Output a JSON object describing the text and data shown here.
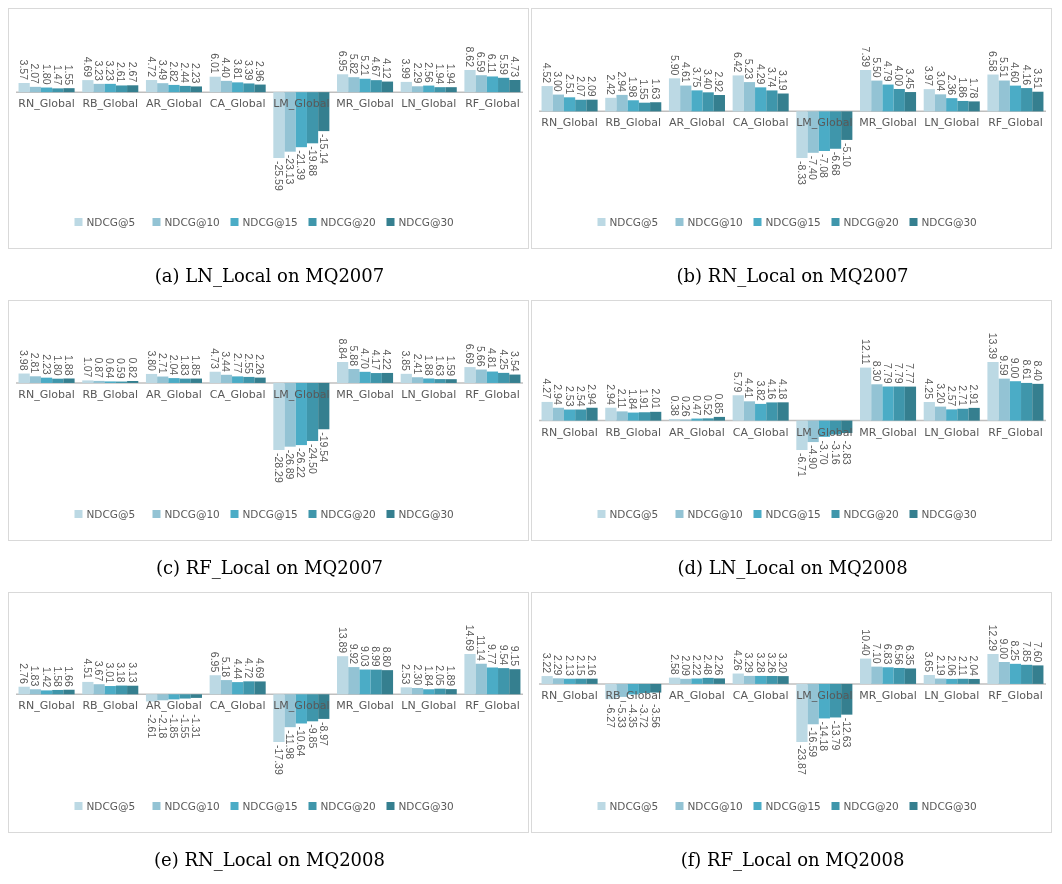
{
  "chart_data": [
    {
      "type": "bar",
      "title": "(a) LN_Local on MQ2007",
      "categories": [
        "RN_Global",
        "RB_Global",
        "AR_Global",
        "CA_Global",
        "LM_Global",
        "MR_Global",
        "LN_Global",
        "RF_Global"
      ],
      "legend": "bottom",
      "series": [
        {
          "name": "NDCG@5",
          "color": "#bcd9e4",
          "values": [
            3.57,
            4.69,
            4.72,
            6.01,
            -25.59,
            6.95,
            3.99,
            8.62
          ],
          "value_labels": [
            "3.57",
            "4.69",
            "4.72",
            "6.01",
            "-25.59",
            "6.95",
            "3.99",
            "8.62"
          ]
        },
        {
          "name": "NDCG@10",
          "color": "#93c3d4",
          "values": [
            2.07,
            3.23,
            3.49,
            4.4,
            -23.13,
            5.82,
            2.29,
            6.59
          ],
          "value_labels": [
            "2.07",
            "3.23",
            "3.49",
            "4.40",
            "-23.13",
            "5.82",
            "2.29",
            "6.59"
          ]
        },
        {
          "name": "NDCG@15",
          "color": "#4bacc6",
          "values": [
            1.8,
            3.23,
            2.82,
            3.81,
            -21.39,
            5.21,
            2.56,
            6.11
          ],
          "value_labels": [
            "1.80",
            "3.23",
            "2.82",
            "3.81",
            "-21.39",
            "5.21",
            "2.56",
            "6.11"
          ]
        },
        {
          "name": "NDCG@20",
          "color": "#3f96ab",
          "values": [
            1.47,
            2.61,
            2.44,
            3.39,
            -19.88,
            4.67,
            1.94,
            5.59
          ],
          "value_labels": [
            "1.47",
            "2.61",
            "2.44",
            "3.39",
            "-19.88",
            "4.67",
            "1.94",
            "5.59"
          ]
        },
        {
          "name": "NDCG@30",
          "color": "#357f8f",
          "values": [
            1.55,
            2.67,
            2.23,
            2.96,
            -15.14,
            4.12,
            1.94,
            4.73
          ],
          "value_labels": [
            "1.55",
            "2.67",
            "2.23",
            "2.96",
            "-15.14",
            "4.12",
            "1.94",
            "4.73"
          ]
        }
      ]
    },
    {
      "type": "bar",
      "title": "(b) RN_Local on MQ2007",
      "categories": [
        "RN_Global",
        "RB_Global",
        "AR_Global",
        "CA_Global",
        "LM_Global",
        "MR_Global",
        "LN_Global",
        "RF_Global"
      ],
      "legend": "bottom",
      "series": [
        {
          "name": "NDCG@5",
          "color": "#bcd9e4",
          "values": [
            4.52,
            2.42,
            5.9,
            6.42,
            -8.33,
            7.39,
            3.97,
            6.58
          ],
          "value_labels": [
            "4.52",
            "2.42",
            "5.90",
            "6.42",
            "-8.33",
            "7.39",
            "3.97",
            "6.58"
          ]
        },
        {
          "name": "NDCG@10",
          "color": "#93c3d4",
          "values": [
            3.0,
            2.94,
            4.61,
            5.23,
            -7.4,
            5.5,
            3.04,
            5.51
          ],
          "value_labels": [
            "3.00",
            "2.94",
            "4.61",
            "5.23",
            "-7.40",
            "5.50",
            "3.04",
            "5.51"
          ]
        },
        {
          "name": "NDCG@15",
          "color": "#4bacc6",
          "values": [
            2.51,
            1.98,
            3.75,
            4.29,
            -7.08,
            4.79,
            2.36,
            4.6
          ],
          "value_labels": [
            "2.51",
            "1.98",
            "3.75",
            "4.29",
            "-7.08",
            "4.79",
            "2.36",
            "4.60"
          ]
        },
        {
          "name": "NDCG@20",
          "color": "#3f96ab",
          "values": [
            2.07,
            1.55,
            3.4,
            3.74,
            -6.68,
            4.0,
            1.86,
            4.16
          ],
          "value_labels": [
            "2.07",
            "1.55",
            "3.40",
            "3.74",
            "-6.68",
            "4.00",
            "1.86",
            "4.16"
          ]
        },
        {
          "name": "NDCG@30",
          "color": "#357f8f",
          "values": [
            2.09,
            1.63,
            2.92,
            3.19,
            -5.1,
            3.45,
            1.78,
            3.51
          ],
          "value_labels": [
            "2.09",
            "1.63",
            "2.92",
            "3.19",
            "-5.10",
            "3.45",
            "1.78",
            "3.51"
          ]
        }
      ]
    },
    {
      "type": "bar",
      "title": "(c) RF_Local on MQ2007",
      "categories": [
        "RN_Global",
        "RB_Global",
        "AR_Global",
        "CA_Global",
        "LM_Global",
        "MR_Global",
        "LN_Global",
        "RF_Global"
      ],
      "legend": "bottom",
      "series": [
        {
          "name": "NDCG@5",
          "color": "#bcd9e4",
          "values": [
            3.98,
            1.07,
            3.8,
            4.73,
            -28.29,
            8.84,
            3.85,
            6.69
          ],
          "value_labels": [
            "3.98",
            "1.07",
            "3.80",
            "4.73",
            "-28.29",
            "8.84",
            "3.85",
            "6.69"
          ]
        },
        {
          "name": "NDCG@10",
          "color": "#93c3d4",
          "values": [
            2.81,
            0.87,
            2.71,
            3.44,
            -26.89,
            5.88,
            2.41,
            5.66
          ],
          "value_labels": [
            "2.81",
            "0.87",
            "2.71",
            "3.44",
            "-26.89",
            "5.88",
            "2.41",
            "5.66"
          ]
        },
        {
          "name": "NDCG@15",
          "color": "#4bacc6",
          "values": [
            2.23,
            0.64,
            2.04,
            2.77,
            -26.22,
            4.7,
            1.88,
            4.81
          ],
          "value_labels": [
            "2.23",
            "0.64",
            "2.04",
            "2.77",
            "-26.22",
            "4.70",
            "1.88",
            "4.81"
          ]
        },
        {
          "name": "NDCG@20",
          "color": "#3f96ab",
          "values": [
            1.8,
            0.59,
            1.83,
            2.55,
            -24.5,
            4.17,
            1.63,
            4.25
          ],
          "value_labels": [
            "1.80",
            "0.59",
            "1.83",
            "2.55",
            "-24.50",
            "4.17",
            "1.63",
            "4.25"
          ]
        },
        {
          "name": "NDCG@30",
          "color": "#357f8f",
          "values": [
            1.88,
            0.82,
            1.85,
            2.26,
            -19.54,
            4.22,
            1.59,
            3.54
          ],
          "value_labels": [
            "1.88",
            "0.82",
            "1.85",
            "2.26",
            "-19.54",
            "4.22",
            "1.59",
            "3.54"
          ]
        }
      ]
    },
    {
      "type": "bar",
      "title": "(d) LN_Local on MQ2008",
      "categories": [
        "RN_Global",
        "RB_Global",
        "AR_Global",
        "CA_Global",
        "LM_Global",
        "MR_Global",
        "LN_Global",
        "RF_Global"
      ],
      "legend": "bottom",
      "series": [
        {
          "name": "NDCG@5",
          "color": "#bcd9e4",
          "values": [
            4.27,
            2.94,
            0.38,
            5.79,
            -6.71,
            12.11,
            4.25,
            13.39
          ],
          "value_labels": [
            "4.27",
            "2.94",
            "0.38",
            "5.79",
            "-6.71",
            "12.11",
            "4.25",
            "13.39"
          ]
        },
        {
          "name": "NDCG@10",
          "color": "#93c3d4",
          "values": [
            2.94,
            2.11,
            0.26,
            4.41,
            -4.9,
            8.3,
            3.2,
            9.59
          ],
          "value_labels": [
            "2.94",
            "2.11",
            "0.26",
            "4.41",
            "-4.90",
            "8.30",
            "3.20",
            "9.59"
          ]
        },
        {
          "name": "NDCG@15",
          "color": "#4bacc6",
          "values": [
            2.53,
            1.84,
            0.47,
            3.82,
            -3.7,
            7.79,
            2.57,
            9.0
          ],
          "value_labels": [
            "2.53",
            "1.84",
            "0.47",
            "3.82",
            "-3.70",
            "7.79",
            "2.57",
            "9.00"
          ]
        },
        {
          "name": "NDCG@20",
          "color": "#3f96ab",
          "values": [
            2.54,
            1.91,
            0.52,
            4.16,
            -3.16,
            7.79,
            2.71,
            8.61
          ],
          "value_labels": [
            "2.54",
            "1.91",
            "0.52",
            "4.16",
            "-3.16",
            "7.79",
            "2.71",
            "8.61"
          ]
        },
        {
          "name": "NDCG@30",
          "color": "#357f8f",
          "values": [
            2.94,
            2.01,
            0.85,
            4.18,
            -2.83,
            7.77,
            2.91,
            8.4
          ],
          "value_labels": [
            "2.94",
            "2.01",
            "0.85",
            "4.18",
            "-2.83",
            "7.77",
            "2.91",
            "8.40"
          ]
        }
      ]
    },
    {
      "type": "bar",
      "title": "(e) RN_Local on MQ2008",
      "categories": [
        "RN_Global",
        "RB_Global",
        "AR_Global",
        "CA_Global",
        "LM_Global",
        "MR_Global",
        "LN_Global",
        "RF_Global"
      ],
      "legend": "bottom",
      "series": [
        {
          "name": "NDCG@5",
          "color": "#bcd9e4",
          "values": [
            2.76,
            4.51,
            -2.61,
            6.95,
            -17.39,
            13.89,
            2.53,
            14.69
          ],
          "value_labels": [
            "2.76",
            "4.51",
            "-2.61",
            "6.95",
            "-17.39",
            "13.89",
            "2.53",
            "14.69"
          ]
        },
        {
          "name": "NDCG@10",
          "color": "#93c3d4",
          "values": [
            1.83,
            3.67,
            -2.18,
            5.18,
            -11.98,
            9.92,
            2.3,
            11.14
          ],
          "value_labels": [
            "1.83",
            "3.67",
            "-2.18",
            "5.18",
            "-11.98",
            "9.92",
            "2.30",
            "11.14"
          ]
        },
        {
          "name": "NDCG@15",
          "color": "#4bacc6",
          "values": [
            1.42,
            3.01,
            -1.85,
            4.44,
            -10.64,
            9.03,
            1.84,
            9.77
          ],
          "value_labels": [
            "1.42",
            "3.01",
            "-1.85",
            "4.44",
            "-10.64",
            "9.03",
            "1.84",
            "9.77"
          ]
        },
        {
          "name": "NDCG@20",
          "color": "#3f96ab",
          "values": [
            1.58,
            3.18,
            -1.55,
            4.72,
            -9.85,
            8.99,
            2.05,
            9.54
          ],
          "value_labels": [
            "1.58",
            "3.18",
            "-1.55",
            "4.72",
            "-9.85",
            "8.99",
            "2.05",
            "9.54"
          ]
        },
        {
          "name": "NDCG@30",
          "color": "#357f8f",
          "values": [
            1.66,
            3.13,
            -1.31,
            4.69,
            -8.97,
            8.8,
            1.89,
            9.15
          ],
          "value_labels": [
            "1.66",
            "3.13",
            "-1.31",
            "4.69",
            "-8.97",
            "8.80",
            "1.89",
            "9.15"
          ]
        }
      ]
    },
    {
      "type": "bar",
      "title": "(f) RF_Local on MQ2008",
      "categories": [
        "RN_Global",
        "RB_Global",
        "AR_Global",
        "CA_Global",
        "LM_Global",
        "MR_Global",
        "LN_Global",
        "RF_Global"
      ],
      "legend": "bottom",
      "series": [
        {
          "name": "NDCG@5",
          "color": "#bcd9e4",
          "values": [
            3.22,
            -6.27,
            2.58,
            4.26,
            -23.87,
            10.4,
            3.65,
            12.29
          ],
          "value_labels": [
            "3.22",
            "-6.27",
            "2.58",
            "4.26",
            "-23.87",
            "10.40",
            "3.65",
            "12.29"
          ]
        },
        {
          "name": "NDCG@10",
          "color": "#93c3d4",
          "values": [
            2.29,
            -5.33,
            2.09,
            3.29,
            -16.59,
            7.1,
            2.19,
            9.0
          ],
          "value_labels": [
            "2.29",
            "-5.33",
            "2.09",
            "3.29",
            "-16.59",
            "7.10",
            "2.19",
            "9.00"
          ]
        },
        {
          "name": "NDCG@15",
          "color": "#4bacc6",
          "values": [
            2.13,
            -4.35,
            2.22,
            3.28,
            -14.18,
            6.83,
            2.06,
            8.25
          ],
          "value_labels": [
            "2.13",
            "-4.35",
            "2.22",
            "3.28",
            "-14.18",
            "6.83",
            "2.06",
            "8.25"
          ]
        },
        {
          "name": "NDCG@20",
          "color": "#3f96ab",
          "values": [
            2.15,
            -3.72,
            2.48,
            3.26,
            -13.79,
            6.56,
            2.11,
            7.85
          ],
          "value_labels": [
            "2.15",
            "-3.72",
            "2.48",
            "3.26",
            "-13.79",
            "6.56",
            "2.11",
            "7.85"
          ]
        },
        {
          "name": "NDCG@30",
          "color": "#357f8f",
          "values": [
            2.16,
            -3.56,
            2.26,
            3.2,
            -12.63,
            6.35,
            2.04,
            7.6
          ],
          "value_labels": [
            "2.16",
            "-3.56",
            "2.26",
            "3.20",
            "-12.63",
            "6.35",
            "2.04",
            "7.60"
          ]
        }
      ]
    }
  ]
}
